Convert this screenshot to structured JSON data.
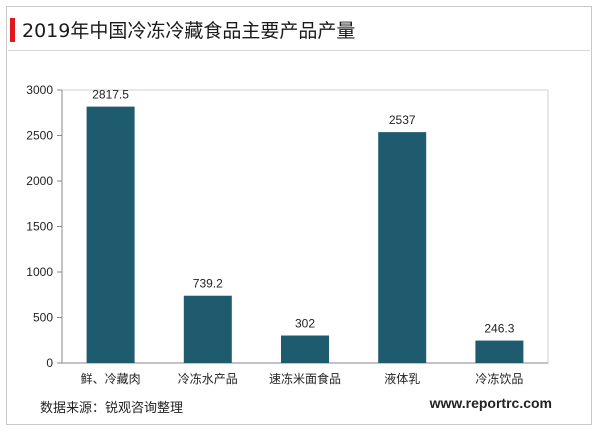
{
  "title": "2019年中国冷冻冷藏食品主要产品产量",
  "source": "数据来源：锐观咨询整理",
  "website": "www.reportrc.com",
  "colors": {
    "bar": "#1e5b6e",
    "accent": "#e0191e",
    "axis": "#888888",
    "gridline": "#d0d0d0"
  },
  "chart_data": {
    "type": "bar",
    "categories": [
      "鲜、冷藏肉",
      "冷冻水产品",
      "速冻米面食品",
      "液体乳",
      "冷冻饮品"
    ],
    "values": [
      2817.5,
      739.2,
      302,
      2537,
      246.3
    ],
    "value_labels": [
      "2817.5",
      "739.2",
      "302",
      "2537",
      "246.3"
    ],
    "yticks": [
      "0",
      "500",
      "1000",
      "1500",
      "2000",
      "2500",
      "3000"
    ],
    "ylim": [
      0,
      3000
    ],
    "grid": true,
    "legend": "none",
    "title": "2019年中国冷冻冷藏食品主要产品产量",
    "xlabel": "",
    "ylabel": ""
  }
}
